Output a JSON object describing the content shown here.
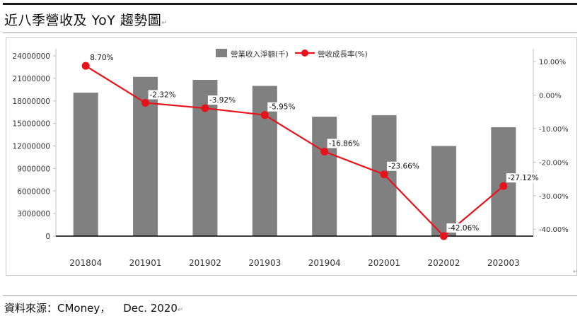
{
  "header": {
    "title": "近八季營收及 YoY 趨勢圖"
  },
  "footer": {
    "source_label": "資料來源：CMoney，",
    "date": "Dec. 2020"
  },
  "chart_data": {
    "type": "bar",
    "title": "",
    "categories": [
      "201804",
      "201901",
      "201902",
      "201903",
      "201904",
      "202001",
      "202002",
      "202003"
    ],
    "series": [
      {
        "name": "營業收入淨額(千)",
        "type": "bar",
        "axis": "left",
        "color": "#808080",
        "values": [
          19100000,
          21200000,
          20800000,
          20000000,
          15900000,
          16100000,
          12000000,
          14500000
        ]
      },
      {
        "name": "營收成長率(%)",
        "type": "line",
        "axis": "right",
        "color": "#e8131a",
        "values": [
          8.7,
          -2.32,
          -3.92,
          -5.95,
          -16.86,
          -23.66,
          -42.06,
          -27.12
        ],
        "labels": [
          "8.70%",
          "-2.32%",
          "-3.92%",
          "-5.95%",
          "-16.86%",
          "-23.66%",
          "-42.06%",
          "-27.12%"
        ]
      }
    ],
    "y_left": {
      "ylim": [
        0,
        24000000
      ],
      "ticks": [
        "24000000",
        "21000000",
        "18000000",
        "15000000",
        "12000000",
        "9000000",
        "6000000",
        "3000000",
        "0"
      ]
    },
    "y_right": {
      "ylim": [
        -42.06,
        10.0
      ],
      "ticks": [
        "10.00%",
        "0.00%",
        "-10.00%",
        "-20.00%",
        "-30.00%",
        "-40.00%"
      ]
    },
    "legend_position": "top-center",
    "grid": false
  }
}
